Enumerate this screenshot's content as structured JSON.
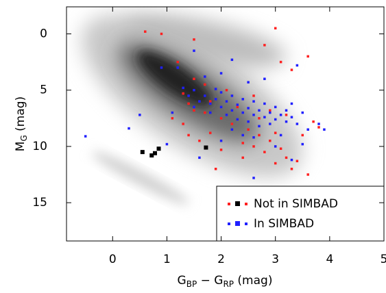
{
  "chart_data": {
    "type": "scatter",
    "x_label_parts": [
      "G",
      "BP",
      " − G",
      "RP",
      " (mag)"
    ],
    "y_label_parts": [
      "M",
      "G",
      " (mag)"
    ],
    "xlim": [
      -0.85,
      5.0
    ],
    "ylim": [
      18.4,
      -2.4
    ],
    "xticks": [
      0,
      1,
      2,
      3,
      4,
      5
    ],
    "yticks": [
      0,
      5,
      10,
      15
    ],
    "legend_corner": "lower right",
    "series": [
      {
        "name": "Not in SIMBAD",
        "color": "#ff2020",
        "x": [
          0.6,
          0.9,
          1.5,
          2.8,
          3.0,
          3.1,
          3.3,
          3.6,
          1.2,
          1.4,
          1.3,
          1.5,
          1.7,
          1.8,
          2.0,
          2.2,
          2.5,
          2.7,
          2.9,
          3.1,
          3.2,
          3.0,
          3.3,
          3.4,
          2.8,
          2.6,
          2.0,
          2.4,
          1.8,
          1.6,
          1.3,
          1.1,
          2.3,
          2.6,
          2.9,
          3.2,
          3.7,
          3.8,
          3.5,
          2.1,
          1.7,
          1.5,
          3.0,
          2.7,
          2.4,
          1.9,
          3.6,
          1.4
        ],
        "y": [
          -0.2,
          0.0,
          0.5,
          1.0,
          -0.5,
          2.5,
          3.2,
          2.0,
          2.5,
          6.2,
          5.3,
          6.8,
          7.0,
          6.0,
          7.5,
          8.0,
          8.5,
          9.0,
          9.5,
          10.2,
          11.0,
          11.5,
          12.0,
          11.3,
          10.5,
          10.0,
          10.3,
          9.7,
          8.8,
          9.5,
          8.0,
          7.5,
          6.5,
          5.5,
          6.8,
          7.2,
          7.8,
          8.3,
          9.0,
          5.0,
          4.5,
          4.0,
          8.8,
          7.5,
          11.0,
          12.0,
          12.5,
          9.0
        ]
      },
      {
        "name": "In SIMBAD",
        "color": "#2020ff",
        "x": [
          1.3,
          1.4,
          1.5,
          1.6,
          1.7,
          1.8,
          1.9,
          2.0,
          2.1,
          2.2,
          2.3,
          2.4,
          2.5,
          2.6,
          2.7,
          2.8,
          2.9,
          3.0,
          3.1,
          3.2,
          3.3,
          3.4,
          1.5,
          1.8,
          2.0,
          2.2,
          2.4,
          2.6,
          2.8,
          3.0,
          2.5,
          2.7,
          2.3,
          2.1,
          1.9,
          2.9,
          3.2,
          3.5,
          3.6,
          3.8,
          3.3,
          2.0,
          1.1,
          0.3,
          -0.5,
          0.5,
          1.0,
          1.2,
          1.5,
          2.2,
          2.5,
          1.6,
          2.0,
          2.4,
          3.0,
          3.3,
          3.5,
          3.9,
          2.6,
          3.4,
          2.8,
          1.7,
          0.9,
          2.2,
          2.6,
          3.1
        ],
        "y": [
          4.8,
          5.5,
          5.0,
          6.0,
          5.5,
          6.2,
          5.8,
          6.5,
          6.0,
          6.8,
          6.3,
          7.0,
          6.6,
          7.2,
          6.8,
          7.4,
          7.0,
          7.6,
          7.2,
          7.8,
          7.4,
          8.0,
          6.5,
          7.0,
          5.2,
          5.5,
          5.8,
          6.0,
          6.2,
          6.5,
          7.8,
          8.2,
          7.6,
          7.2,
          4.9,
          8.0,
          6.8,
          7.0,
          8.5,
          8.0,
          6.2,
          3.5,
          7.0,
          8.4,
          9.1,
          7.2,
          9.8,
          3.0,
          1.5,
          2.3,
          4.3,
          11.0,
          9.5,
          9.0,
          10.0,
          11.2,
          9.8,
          8.5,
          12.8,
          2.8,
          4.0,
          3.8,
          3.0,
          8.5,
          9.2,
          9.0
        ]
      },
      {
        "color": "#000000",
        "x": [
          0.55,
          0.72,
          0.78,
          0.85,
          1.72
        ],
        "y": [
          10.5,
          10.8,
          10.6,
          10.2,
          10.1
        ]
      }
    ]
  }
}
